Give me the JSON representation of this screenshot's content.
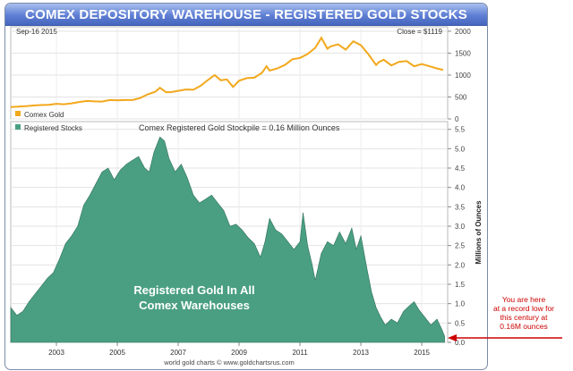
{
  "title": "COMEX DEPOSITORY WAREHOUSE - REGISTERED GOLD STOCKS",
  "footer": "world gold charts © www.goldchartsrus.com",
  "annotation": [
    "You are here",
    "at a record low for",
    "this century at",
    "0.16M ounces"
  ],
  "annotation_color": "#cc0000",
  "chart_data": [
    {
      "type": "line",
      "series": [
        {
          "name": "Comex Gold",
          "color": "#f2a81d"
        }
      ],
      "date_label": "Sep-16  2015",
      "close_label": "Close = $1119",
      "yticks": [
        0,
        500,
        1000,
        1500,
        2000
      ],
      "ylim": [
        0,
        2100
      ],
      "xlim": [
        2001.5,
        2015.85
      ],
      "points": [
        [
          2001.5,
          270
        ],
        [
          2001.75,
          280
        ],
        [
          2002.0,
          290
        ],
        [
          2002.25,
          305
        ],
        [
          2002.5,
          315
        ],
        [
          2002.75,
          320
        ],
        [
          2003.0,
          345
        ],
        [
          2003.25,
          335
        ],
        [
          2003.5,
          355
        ],
        [
          2003.75,
          385
        ],
        [
          2004.0,
          410
        ],
        [
          2004.25,
          400
        ],
        [
          2004.5,
          395
        ],
        [
          2004.75,
          430
        ],
        [
          2005.0,
          425
        ],
        [
          2005.25,
          430
        ],
        [
          2005.5,
          430
        ],
        [
          2005.75,
          475
        ],
        [
          2006.0,
          560
        ],
        [
          2006.25,
          620
        ],
        [
          2006.4,
          710
        ],
        [
          2006.6,
          610
        ],
        [
          2006.75,
          610
        ],
        [
          2007.0,
          640
        ],
        [
          2007.25,
          670
        ],
        [
          2007.5,
          665
        ],
        [
          2007.75,
          760
        ],
        [
          2008.0,
          900
        ],
        [
          2008.2,
          1000
        ],
        [
          2008.4,
          880
        ],
        [
          2008.6,
          900
        ],
        [
          2008.8,
          730
        ],
        [
          2009.0,
          870
        ],
        [
          2009.25,
          930
        ],
        [
          2009.5,
          940
        ],
        [
          2009.75,
          1050
        ],
        [
          2009.9,
          1200
        ],
        [
          2010.0,
          1100
        ],
        [
          2010.25,
          1150
        ],
        [
          2010.5,
          1230
        ],
        [
          2010.75,
          1360
        ],
        [
          2011.0,
          1390
        ],
        [
          2011.25,
          1480
        ],
        [
          2011.5,
          1620
        ],
        [
          2011.7,
          1850
        ],
        [
          2011.9,
          1600
        ],
        [
          2012.0,
          1650
        ],
        [
          2012.25,
          1700
        ],
        [
          2012.5,
          1580
        ],
        [
          2012.75,
          1770
        ],
        [
          2013.0,
          1680
        ],
        [
          2013.25,
          1470
        ],
        [
          2013.5,
          1230
        ],
        [
          2013.6,
          1300
        ],
        [
          2013.75,
          1350
        ],
        [
          2014.0,
          1220
        ],
        [
          2014.25,
          1300
        ],
        [
          2014.5,
          1320
        ],
        [
          2014.75,
          1200
        ],
        [
          2015.0,
          1250
        ],
        [
          2015.25,
          1200
        ],
        [
          2015.5,
          1150
        ],
        [
          2015.7,
          1119
        ]
      ]
    },
    {
      "type": "area",
      "title": "Comex Registered Gold Stockpile = 0.16 Million Ounces",
      "ylabel": "Millions of Ounces",
      "series": [
        {
          "name": "Registered Stocks",
          "color": "#4a9f82"
        }
      ],
      "inner_label": [
        "Registered Gold In All",
        "Comex Warehouses"
      ],
      "xticks": [
        "2003",
        "2005",
        "2007",
        "2009",
        "2011",
        "2013",
        "2015"
      ],
      "yticks": [
        0.0,
        0.5,
        1.0,
        1.5,
        2.0,
        2.5,
        3.0,
        3.5,
        4.0,
        4.5,
        5.0,
        5.5
      ],
      "ylim": [
        0,
        5.7
      ],
      "xlim": [
        2001.5,
        2015.85
      ],
      "points": [
        [
          2001.5,
          0.9
        ],
        [
          2001.7,
          0.7
        ],
        [
          2001.9,
          0.8
        ],
        [
          2002.1,
          1.05
        ],
        [
          2002.3,
          1.25
        ],
        [
          2002.5,
          1.45
        ],
        [
          2002.7,
          1.65
        ],
        [
          2002.9,
          1.8
        ],
        [
          2003.1,
          2.15
        ],
        [
          2003.3,
          2.55
        ],
        [
          2003.5,
          2.75
        ],
        [
          2003.7,
          3.0
        ],
        [
          2003.9,
          3.55
        ],
        [
          2004.1,
          3.8
        ],
        [
          2004.3,
          4.1
        ],
        [
          2004.5,
          4.4
        ],
        [
          2004.7,
          4.5
        ],
        [
          2004.9,
          4.2
        ],
        [
          2005.1,
          4.45
        ],
        [
          2005.3,
          4.6
        ],
        [
          2005.5,
          4.7
        ],
        [
          2005.7,
          4.8
        ],
        [
          2005.9,
          4.5
        ],
        [
          2006.05,
          4.4
        ],
        [
          2006.2,
          4.9
        ],
        [
          2006.4,
          5.3
        ],
        [
          2006.55,
          5.2
        ],
        [
          2006.7,
          4.75
        ],
        [
          2006.9,
          4.4
        ],
        [
          2007.1,
          4.6
        ],
        [
          2007.3,
          4.25
        ],
        [
          2007.5,
          3.8
        ],
        [
          2007.7,
          3.6
        ],
        [
          2007.9,
          3.7
        ],
        [
          2008.1,
          3.8
        ],
        [
          2008.3,
          3.6
        ],
        [
          2008.5,
          3.4
        ],
        [
          2008.7,
          3.0
        ],
        [
          2008.9,
          3.05
        ],
        [
          2009.1,
          2.9
        ],
        [
          2009.3,
          2.7
        ],
        [
          2009.5,
          2.55
        ],
        [
          2009.7,
          2.2
        ],
        [
          2009.85,
          2.6
        ],
        [
          2010.0,
          3.2
        ],
        [
          2010.2,
          2.9
        ],
        [
          2010.4,
          2.8
        ],
        [
          2010.6,
          2.6
        ],
        [
          2010.8,
          2.4
        ],
        [
          2011.0,
          2.6
        ],
        [
          2011.1,
          3.35
        ],
        [
          2011.25,
          2.5
        ],
        [
          2011.4,
          2.0
        ],
        [
          2011.5,
          1.6
        ],
        [
          2011.7,
          2.3
        ],
        [
          2011.9,
          2.6
        ],
        [
          2012.1,
          2.5
        ],
        [
          2012.3,
          2.85
        ],
        [
          2012.5,
          2.55
        ],
        [
          2012.7,
          2.95
        ],
        [
          2012.85,
          2.4
        ],
        [
          2013.0,
          2.75
        ],
        [
          2013.2,
          1.9
        ],
        [
          2013.35,
          1.3
        ],
        [
          2013.5,
          0.9
        ],
        [
          2013.65,
          0.65
        ],
        [
          2013.8,
          0.45
        ],
        [
          2014.0,
          0.6
        ],
        [
          2014.2,
          0.5
        ],
        [
          2014.4,
          0.8
        ],
        [
          2014.6,
          0.95
        ],
        [
          2014.75,
          1.05
        ],
        [
          2014.9,
          0.85
        ],
        [
          2015.1,
          0.65
        ],
        [
          2015.3,
          0.45
        ],
        [
          2015.5,
          0.6
        ],
        [
          2015.65,
          0.35
        ],
        [
          2015.75,
          0.16
        ]
      ]
    }
  ]
}
